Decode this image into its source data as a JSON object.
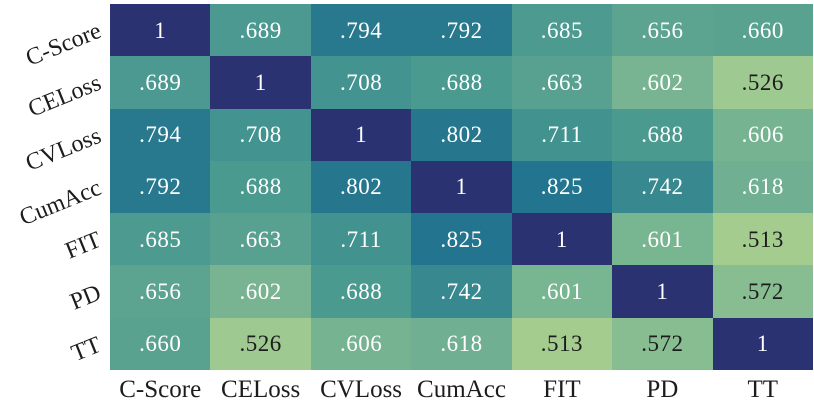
{
  "chart_data": {
    "type": "heatmap",
    "title": "",
    "rows": [
      "C-Score",
      "CELoss",
      "CVLoss",
      "CumAcc",
      "FIT",
      "PD",
      "TT"
    ],
    "columns": [
      "C-Score",
      "CELoss",
      "CVLoss",
      "CumAcc",
      "FIT",
      "PD",
      "TT"
    ],
    "matrix": [
      [
        1,
        0.689,
        0.794,
        0.792,
        0.685,
        0.656,
        0.66
      ],
      [
        0.689,
        1,
        0.708,
        0.688,
        0.663,
        0.602,
        0.526
      ],
      [
        0.794,
        0.708,
        1,
        0.802,
        0.711,
        0.688,
        0.606
      ],
      [
        0.792,
        0.688,
        0.802,
        1,
        0.825,
        0.742,
        0.618
      ],
      [
        0.685,
        0.663,
        0.711,
        0.825,
        1,
        0.601,
        0.513
      ],
      [
        0.656,
        0.602,
        0.688,
        0.742,
        0.601,
        1,
        0.572
      ],
      [
        0.66,
        0.526,
        0.606,
        0.618,
        0.513,
        0.572,
        1
      ]
    ],
    "cell_labels": [
      [
        "1",
        ".689",
        ".794",
        ".792",
        ".685",
        ".656",
        ".660"
      ],
      [
        ".689",
        "1",
        ".708",
        ".688",
        ".663",
        ".602",
        ".526"
      ],
      [
        ".794",
        ".708",
        "1",
        ".802",
        ".711",
        ".688",
        ".606"
      ],
      [
        ".792",
        ".688",
        ".802",
        "1",
        ".825",
        ".742",
        ".618"
      ],
      [
        ".685",
        ".663",
        ".711",
        ".825",
        "1",
        ".601",
        ".513"
      ],
      [
        ".656",
        ".602",
        ".688",
        ".742",
        ".601",
        "1",
        ".572"
      ],
      [
        ".660",
        ".526",
        ".606",
        ".618",
        ".513",
        ".572",
        "1"
      ]
    ],
    "colormap_stops": [
      {
        "value": 0.5,
        "color": "#abd08f"
      },
      {
        "value": 0.6,
        "color": "#79b591"
      },
      {
        "value": 0.7,
        "color": "#459690"
      },
      {
        "value": 0.8,
        "color": "#26778e"
      },
      {
        "value": 0.85,
        "color": "#1f738f"
      },
      {
        "value": 1.0,
        "color": "#2b3271"
      }
    ],
    "dark_text_threshold": 0.59,
    "cell_text_light": "#ffffff",
    "cell_text_dark": "#1c1c1c",
    "axis_label_color": "#1c1c1c",
    "legend": "none",
    "grid": "off"
  }
}
